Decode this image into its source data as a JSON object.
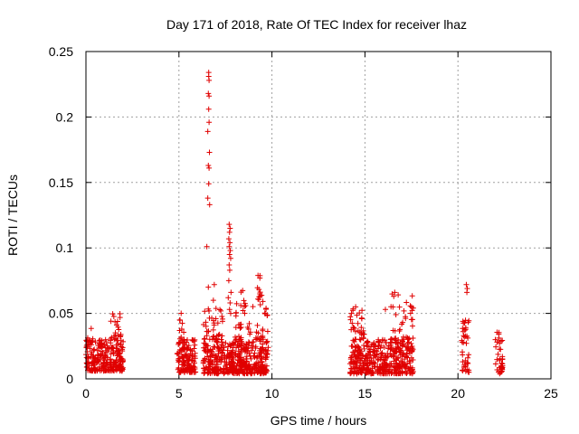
{
  "chart_data": {
    "type": "scatter",
    "title": "Day 171 of 2018, Rate Of TEC Index for receiver lhaz",
    "xlabel": "GPS time / hours",
    "ylabel": "ROTI / TECUs",
    "xlim": [
      0,
      25
    ],
    "ylim": [
      0,
      0.25
    ],
    "x_ticks": [
      0,
      5,
      10,
      15,
      20,
      25
    ],
    "y_ticks": [
      0,
      0.05,
      0.1,
      0.15,
      0.2,
      0.25
    ],
    "x_tick_labels": [
      "0",
      "5",
      "10",
      "15",
      "20",
      "25"
    ],
    "y_tick_labels": [
      "0",
      "0.05",
      "0.1",
      "0.15",
      "0.2",
      "0.25"
    ],
    "grid": true,
    "marker": "plus",
    "color": "#e00000",
    "series": [
      {
        "name": "ROTI",
        "clusters": [
          {
            "x_range": [
              0.0,
              2.0
            ],
            "y_low": 0.006,
            "y_high": 0.03,
            "count": 260
          },
          {
            "x_range": [
              1.3,
              1.9
            ],
            "y_low": 0.03,
            "y_high": 0.05,
            "count": 22
          },
          {
            "x_range": [
              0.0,
              0.4
            ],
            "y_low": 0.028,
            "y_high": 0.04,
            "count": 8
          },
          {
            "x_range": [
              4.9,
              5.9
            ],
            "y_low": 0.005,
            "y_high": 0.03,
            "count": 130
          },
          {
            "x_range": [
              5.0,
              5.3
            ],
            "y_low": 0.03,
            "y_high": 0.053,
            "count": 10
          },
          {
            "x_range": [
              6.3,
              9.8
            ],
            "y_low": 0.004,
            "y_high": 0.03,
            "count": 460
          },
          {
            "x_range": [
              6.3,
              7.4
            ],
            "y_low": 0.03,
            "y_high": 0.055,
            "count": 40
          },
          {
            "x_range": [
              8.0,
              9.8
            ],
            "y_low": 0.03,
            "y_high": 0.06,
            "count": 50
          },
          {
            "x_range": [
              9.2,
              9.45
            ],
            "y_low": 0.06,
            "y_high": 0.08,
            "count": 10
          },
          {
            "x_range": [
              8.3,
              8.6
            ],
            "y_low": 0.055,
            "y_high": 0.07,
            "count": 5
          },
          {
            "x_range": [
              14.2,
              17.6
            ],
            "y_low": 0.004,
            "y_high": 0.03,
            "count": 420
          },
          {
            "x_range": [
              14.2,
              15.0
            ],
            "y_low": 0.03,
            "y_high": 0.055,
            "count": 30
          },
          {
            "x_range": [
              16.3,
              17.6
            ],
            "y_low": 0.03,
            "y_high": 0.066,
            "count": 35
          },
          {
            "x_range": [
              20.2,
              20.6
            ],
            "y_low": 0.005,
            "y_high": 0.045,
            "count": 40
          },
          {
            "x_range": [
              22.0,
              22.4
            ],
            "y_low": 0.004,
            "y_high": 0.037,
            "count": 40
          }
        ],
        "points": [
          {
            "x": 6.6,
            "y": 0.234
          },
          {
            "x": 6.6,
            "y": 0.231
          },
          {
            "x": 6.62,
            "y": 0.228
          },
          {
            "x": 6.58,
            "y": 0.218
          },
          {
            "x": 6.62,
            "y": 0.216
          },
          {
            "x": 6.6,
            "y": 0.206
          },
          {
            "x": 6.62,
            "y": 0.196
          },
          {
            "x": 6.55,
            "y": 0.189
          },
          {
            "x": 6.64,
            "y": 0.173
          },
          {
            "x": 6.58,
            "y": 0.163
          },
          {
            "x": 6.62,
            "y": 0.161
          },
          {
            "x": 6.6,
            "y": 0.149
          },
          {
            "x": 6.55,
            "y": 0.138
          },
          {
            "x": 6.65,
            "y": 0.133
          },
          {
            "x": 6.5,
            "y": 0.101
          },
          {
            "x": 6.58,
            "y": 0.07
          },
          {
            "x": 6.9,
            "y": 0.072
          },
          {
            "x": 6.85,
            "y": 0.06
          },
          {
            "x": 7.7,
            "y": 0.118
          },
          {
            "x": 7.75,
            "y": 0.115
          },
          {
            "x": 7.72,
            "y": 0.112
          },
          {
            "x": 7.68,
            "y": 0.107
          },
          {
            "x": 7.74,
            "y": 0.104
          },
          {
            "x": 7.7,
            "y": 0.101
          },
          {
            "x": 7.76,
            "y": 0.098
          },
          {
            "x": 7.72,
            "y": 0.095
          },
          {
            "x": 7.78,
            "y": 0.092
          },
          {
            "x": 7.7,
            "y": 0.087
          },
          {
            "x": 7.73,
            "y": 0.083
          },
          {
            "x": 7.68,
            "y": 0.075
          },
          {
            "x": 7.8,
            "y": 0.066
          },
          {
            "x": 7.65,
            "y": 0.062
          },
          {
            "x": 7.75,
            "y": 0.058
          },
          {
            "x": 7.72,
            "y": 0.053
          },
          {
            "x": 7.78,
            "y": 0.05
          },
          {
            "x": 20.45,
            "y": 0.072
          },
          {
            "x": 20.5,
            "y": 0.069
          },
          {
            "x": 20.48,
            "y": 0.066
          },
          {
            "x": 17.5,
            "y": 0.055
          },
          {
            "x": 17.6,
            "y": 0.054
          },
          {
            "x": 16.6,
            "y": 0.066
          },
          {
            "x": 16.55,
            "y": 0.063
          },
          {
            "x": 16.1,
            "y": 0.053
          },
          {
            "x": 14.5,
            "y": 0.055
          },
          {
            "x": 9.25,
            "y": 0.079
          },
          {
            "x": 9.35,
            "y": 0.077
          }
        ]
      }
    ]
  }
}
